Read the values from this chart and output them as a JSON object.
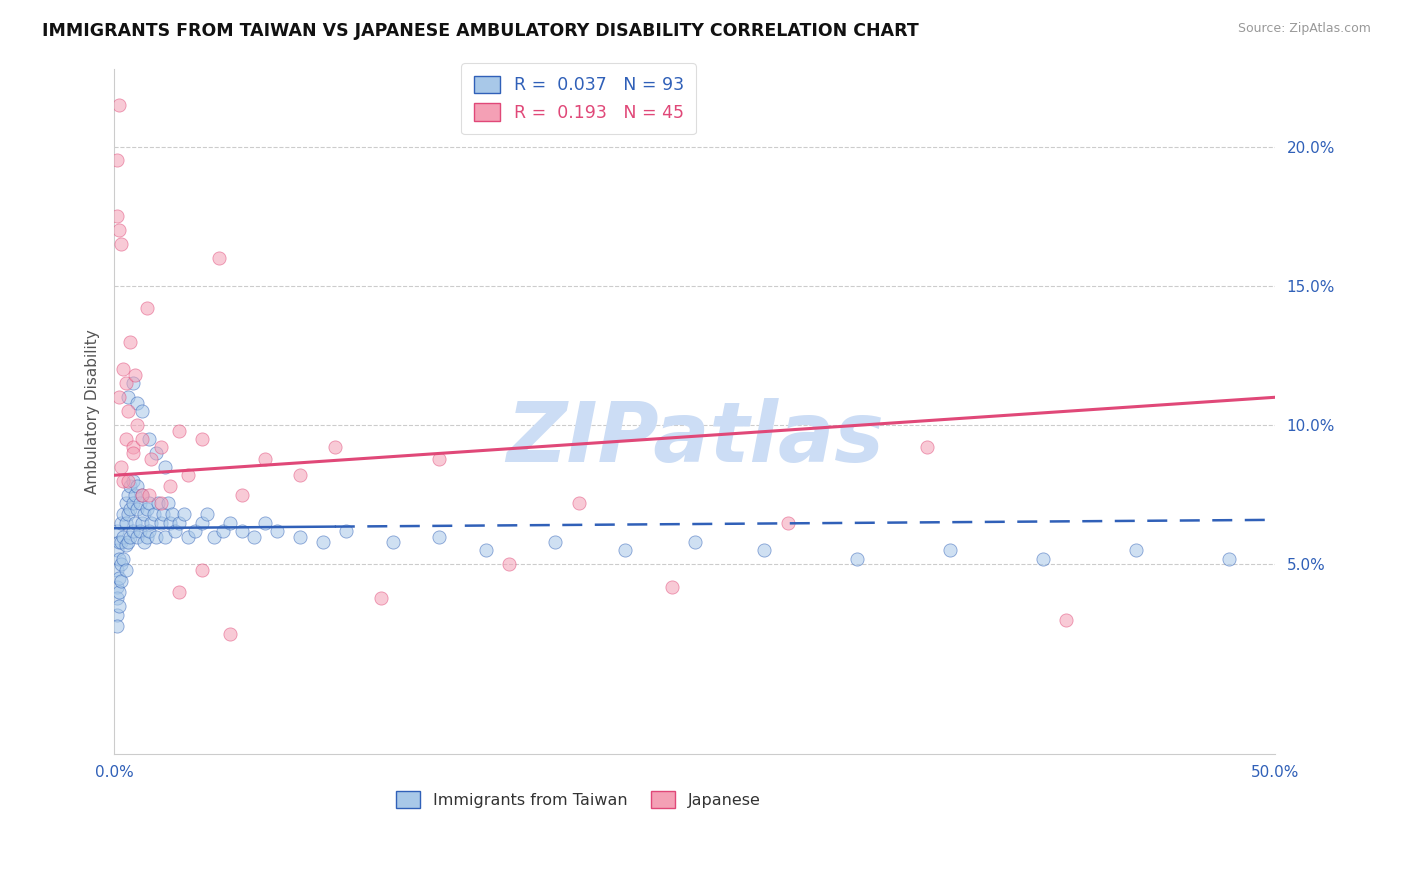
{
  "title": "IMMIGRANTS FROM TAIWAN VS JAPANESE AMBULATORY DISABILITY CORRELATION CHART",
  "source": "Source: ZipAtlas.com",
  "ylabel": "Ambulatory Disability",
  "legend_label1": "Immigrants from Taiwan",
  "legend_label2": "Japanese",
  "r1": 0.037,
  "n1": 93,
  "r2": 0.193,
  "n2": 45,
  "color1": "#a8c8e8",
  "color2": "#f4a0b5",
  "line_color1": "#3060b8",
  "line_color2": "#e04878",
  "xlim": [
    0.0,
    0.5
  ],
  "ylim": [
    -0.018,
    0.228
  ],
  "yticks": [
    0.05,
    0.1,
    0.15,
    0.2
  ],
  "xticks": [
    0.0,
    0.5
  ],
  "watermark": "ZIPatlas",
  "watermark_color": "#ccddf5",
  "bg_color": "#ffffff",
  "taiwan_x": [
    0.001,
    0.001,
    0.001,
    0.001,
    0.001,
    0.001,
    0.001,
    0.002,
    0.002,
    0.002,
    0.002,
    0.002,
    0.003,
    0.003,
    0.003,
    0.003,
    0.004,
    0.004,
    0.004,
    0.005,
    0.005,
    0.005,
    0.005,
    0.006,
    0.006,
    0.006,
    0.007,
    0.007,
    0.007,
    0.008,
    0.008,
    0.008,
    0.009,
    0.009,
    0.01,
    0.01,
    0.01,
    0.011,
    0.011,
    0.012,
    0.012,
    0.013,
    0.013,
    0.014,
    0.014,
    0.015,
    0.015,
    0.016,
    0.017,
    0.018,
    0.019,
    0.02,
    0.021,
    0.022,
    0.023,
    0.024,
    0.025,
    0.026,
    0.028,
    0.03,
    0.032,
    0.035,
    0.038,
    0.04,
    0.043,
    0.047,
    0.05,
    0.055,
    0.06,
    0.065,
    0.07,
    0.08,
    0.09,
    0.1,
    0.12,
    0.14,
    0.16,
    0.19,
    0.22,
    0.25,
    0.28,
    0.32,
    0.36,
    0.4,
    0.44,
    0.48,
    0.006,
    0.008,
    0.01,
    0.012,
    0.015,
    0.018,
    0.022
  ],
  "taiwan_y": [
    0.062,
    0.055,
    0.048,
    0.042,
    0.038,
    0.032,
    0.028,
    0.058,
    0.052,
    0.045,
    0.04,
    0.035,
    0.065,
    0.058,
    0.05,
    0.044,
    0.068,
    0.06,
    0.052,
    0.072,
    0.065,
    0.057,
    0.048,
    0.075,
    0.068,
    0.058,
    0.078,
    0.07,
    0.06,
    0.08,
    0.072,
    0.062,
    0.075,
    0.065,
    0.078,
    0.07,
    0.06,
    0.072,
    0.062,
    0.075,
    0.065,
    0.068,
    0.058,
    0.07,
    0.06,
    0.072,
    0.062,
    0.065,
    0.068,
    0.06,
    0.072,
    0.065,
    0.068,
    0.06,
    0.072,
    0.065,
    0.068,
    0.062,
    0.065,
    0.068,
    0.06,
    0.062,
    0.065,
    0.068,
    0.06,
    0.062,
    0.065,
    0.062,
    0.06,
    0.065,
    0.062,
    0.06,
    0.058,
    0.062,
    0.058,
    0.06,
    0.055,
    0.058,
    0.055,
    0.058,
    0.055,
    0.052,
    0.055,
    0.052,
    0.055,
    0.052,
    0.11,
    0.115,
    0.108,
    0.105,
    0.095,
    0.09,
    0.085
  ],
  "japanese_x": [
    0.001,
    0.001,
    0.002,
    0.002,
    0.003,
    0.003,
    0.004,
    0.005,
    0.005,
    0.006,
    0.007,
    0.008,
    0.009,
    0.01,
    0.012,
    0.014,
    0.016,
    0.02,
    0.024,
    0.028,
    0.032,
    0.038,
    0.045,
    0.055,
    0.065,
    0.08,
    0.095,
    0.115,
    0.14,
    0.17,
    0.2,
    0.24,
    0.29,
    0.35,
    0.41,
    0.002,
    0.004,
    0.006,
    0.008,
    0.012,
    0.015,
    0.02,
    0.028,
    0.038,
    0.05
  ],
  "japanese_y": [
    0.195,
    0.175,
    0.17,
    0.11,
    0.165,
    0.085,
    0.12,
    0.115,
    0.095,
    0.105,
    0.13,
    0.092,
    0.118,
    0.1,
    0.095,
    0.142,
    0.088,
    0.092,
    0.078,
    0.098,
    0.082,
    0.095,
    0.16,
    0.075,
    0.088,
    0.082,
    0.092,
    0.038,
    0.088,
    0.05,
    0.072,
    0.042,
    0.065,
    0.092,
    0.03,
    0.215,
    0.08,
    0.08,
    0.09,
    0.075,
    0.075,
    0.072,
    0.04,
    0.048,
    0.025
  ]
}
